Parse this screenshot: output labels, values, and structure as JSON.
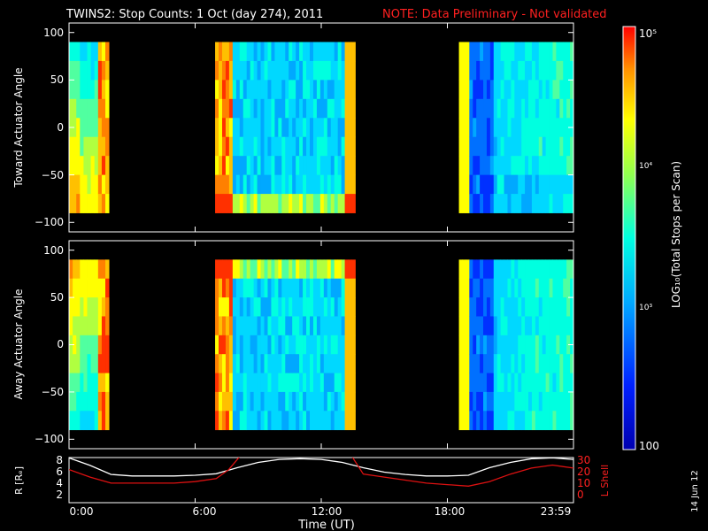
{
  "header": {
    "title": "TWINS2: Stop Counts:  1 Oct (day 274), 2011",
    "note": "NOTE: Data Preliminary - Not validated"
  },
  "stamp": "14 Jun 12",
  "colors": {
    "background": "#000000",
    "note": "#ff2020",
    "axis": "#ffffff",
    "rshell": "#ffffff",
    "lshell": "#dd1111"
  },
  "chart_data": [
    {
      "type": "heatmap",
      "ylabel": "Toward Actuator Angle",
      "ylim": [
        -110,
        110
      ],
      "yticks": [
        "100",
        "50",
        "0",
        "−50",
        "−100"
      ],
      "bands_hours": [
        [
          0.0,
          1.9
        ],
        [
          6.95,
          13.62
        ],
        [
          18.55,
          24.0
        ]
      ],
      "scale": "log",
      "colorbar_range": [
        100,
        100000
      ]
    },
    {
      "type": "heatmap",
      "ylabel": "Away Actuator Angle",
      "ylim": [
        -110,
        110
      ],
      "yticks": [
        "100",
        "50",
        "0",
        "−50",
        "−100"
      ],
      "bands_hours": [
        [
          0.0,
          1.9
        ],
        [
          6.95,
          13.62
        ],
        [
          18.55,
          24.0
        ]
      ],
      "scale": "log",
      "colorbar_range": [
        100,
        100000
      ]
    },
    {
      "type": "line",
      "xlabel": "Time (UT)",
      "xticks": [
        "0:00",
        "6:00",
        "12:00",
        "18:00",
        "23:59"
      ],
      "ylabel_left": "R [Rₑ]",
      "ylabel_right": "L Shell",
      "yticks_left": [
        "8",
        "6",
        "4",
        "2"
      ],
      "yticks_right": [
        "30",
        "20",
        "10",
        "0"
      ],
      "ylim_left": [
        2,
        8
      ],
      "ylim_right": [
        0,
        30
      ],
      "series": [
        {
          "name": "R",
          "axis": "left",
          "x": [
            0,
            1,
            2,
            3,
            4,
            5,
            6,
            7,
            8,
            9,
            10,
            11,
            12,
            13,
            14,
            15,
            16,
            17,
            18,
            19,
            20,
            21,
            22,
            23,
            24
          ],
          "y": [
            7.6,
            6.6,
            5.4,
            5.2,
            5.2,
            5.2,
            5.3,
            5.5,
            6.3,
            7.0,
            7.4,
            7.5,
            7.4,
            7.0,
            6.3,
            5.7,
            5.4,
            5.2,
            5.2,
            5.3,
            6.3,
            7.0,
            7.5,
            7.6,
            7.4
          ]
        },
        {
          "name": "L Shell",
          "axis": "right",
          "x": [
            0,
            1,
            2,
            3,
            4,
            5,
            6,
            7,
            7.6,
            8.2,
            13.4,
            14,
            15,
            16,
            17,
            18,
            19,
            20,
            21,
            22,
            23,
            24
          ],
          "y": [
            22,
            17,
            13,
            13,
            13,
            13,
            14,
            16,
            22,
            32,
            32,
            19,
            17,
            15,
            13,
            12,
            11,
            14,
            19,
            23,
            25,
            23
          ]
        }
      ]
    }
  ],
  "colorbar": {
    "label": "LOG₁₀(Total Stops per Scan)",
    "tick_top": "10⁵",
    "tick_mid1": "10⁴",
    "tick_mid2": "10³",
    "tick_bottom": "100"
  }
}
